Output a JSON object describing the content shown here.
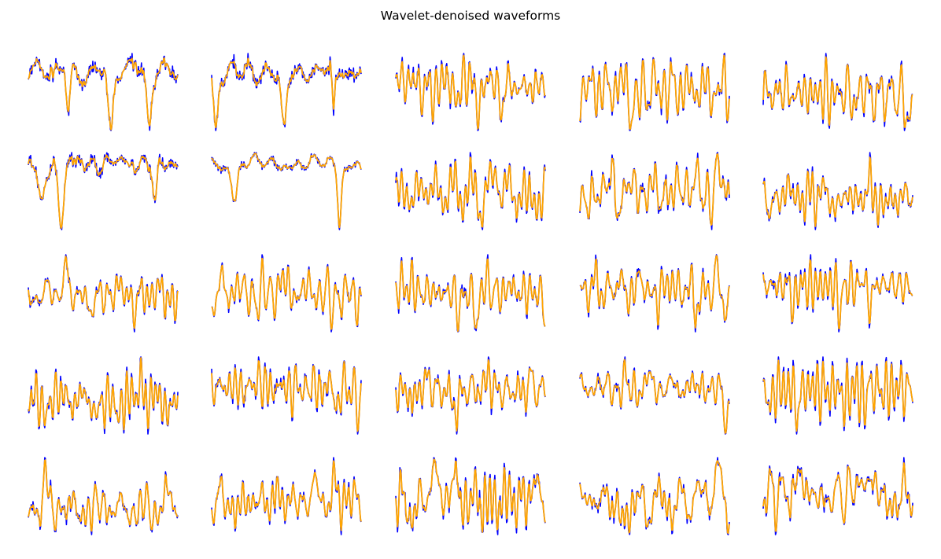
{
  "title": "Wavelet-denoised waveforms",
  "chart_data": {
    "type": "line",
    "title": "Wavelet-denoised waveforms",
    "layout": "5x5 grid of small-multiple line plots, axes hidden",
    "grid": false,
    "axes_visible": false,
    "n_points_per_trace": 256,
    "series_styles": [
      {
        "role": "original (noisy) waveform",
        "color": "#0000ff"
      },
      {
        "role": "wavelet-denoised waveform",
        "color": "#ffa500"
      }
    ],
    "panels": [
      {
        "row": 0,
        "col": 0,
        "pattern": "Flat baseline with two sharp negative spikes and a shallower dip mid-way; blue and orange overlap almost entirely."
      },
      {
        "row": 0,
        "col": 1,
        "pattern": "Three deep negative troughs with positive peaks between; orange tracks blue closely."
      },
      {
        "row": 0,
        "col": 2,
        "pattern": "Dense oscillation with several deep negative spikes."
      },
      {
        "row": 0,
        "col": 3,
        "pattern": "Very dense, high-amplitude oscillation across the whole trace."
      },
      {
        "row": 0,
        "col": 4,
        "pattern": "Dense oscillation with a tall initial peak and several deep troughs."
      },
      {
        "row": 1,
        "col": 0,
        "pattern": "Flat baseline with two deep negative spikes and a shallower dip, similar to row 0 col 0."
      },
      {
        "row": 1,
        "col": 1,
        "pattern": "Three deep negative troughs, similar to row 0 col 1."
      },
      {
        "row": 1,
        "col": 2,
        "pattern": "Dense oscillation with a few deep troughs."
      },
      {
        "row": 1,
        "col": 3,
        "pattern": "Dense oscillation with strong positive peaks."
      },
      {
        "row": 1,
        "col": 4,
        "pattern": "Oscillation with a tall early peak and several troughs."
      },
      {
        "row": 2,
        "col": 0,
        "pattern": "Tall initial spike followed by oscillation with dips."
      },
      {
        "row": 2,
        "col": 1,
        "pattern": "Dense high-amplitude oscillation."
      },
      {
        "row": 2,
        "col": 2,
        "pattern": "Dense oscillation with several tall peaks."
      },
      {
        "row": 2,
        "col": 3,
        "pattern": "Tall early peak then lower-amplitude oscillation with a second tall peak."
      },
      {
        "row": 2,
        "col": 4,
        "pattern": "Periodic tall peaks with oscillation between them."
      },
      {
        "row": 3,
        "col": 0,
        "pattern": "Dense oscillation with tall peaks mid and late."
      },
      {
        "row": 3,
        "col": 1,
        "pattern": "Oscillation with multiple tall peaks and deep troughs."
      },
      {
        "row": 3,
        "col": 2,
        "pattern": "Dense oscillation with peaks early and mid."
      },
      {
        "row": 3,
        "col": 3,
        "pattern": "Tall early peak then smaller oscillation."
      },
      {
        "row": 3,
        "col": 4,
        "pattern": "Very tall early peak then dense oscillation with deep late troughs."
      },
      {
        "row": 4,
        "col": 0,
        "pattern": "Dense oscillation with a tall early peak and deep late trough."
      },
      {
        "row": 4,
        "col": 1,
        "pattern": "Dense oscillation with a tall early peak."
      },
      {
        "row": 4,
        "col": 2,
        "pattern": "Dense oscillation with several deep troughs."
      },
      {
        "row": 4,
        "col": 3,
        "pattern": "Regular oscillation with tall periodic peaks and deep troughs."
      },
      {
        "row": 4,
        "col": 4,
        "pattern": "Tall initial peak then dense oscillation."
      }
    ]
  }
}
